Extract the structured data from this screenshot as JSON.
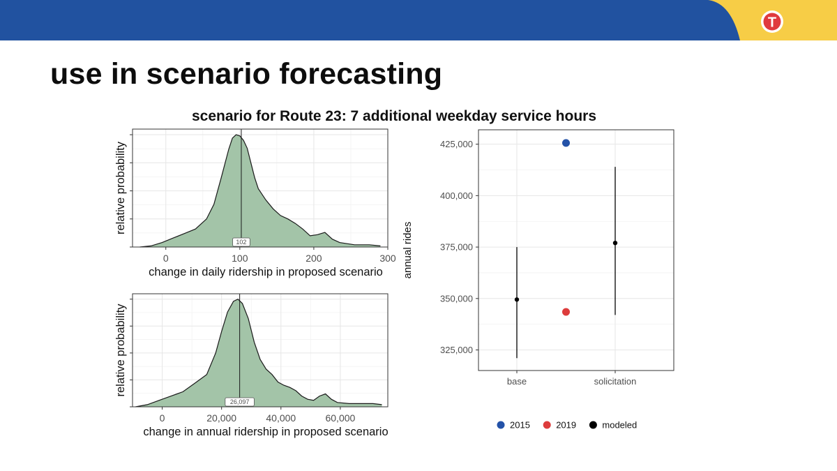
{
  "slide": {
    "title": "use in scenario forecasting",
    "logo_letter": "T",
    "colors": {
      "header_blue": "#2152a0",
      "header_yellow": "#f7cd46",
      "logo_red": "#e03a3e"
    }
  },
  "figure_title": "scenario for Route 23: 7 additional weekday service hours",
  "chart_data": [
    {
      "type": "area",
      "name": "daily-density",
      "title": "",
      "xlabel": "change in daily ridership in proposed scenario",
      "ylabel": "relative probability",
      "xlim": [
        -45,
        300
      ],
      "xticks": [
        0,
        100,
        200,
        300
      ],
      "xtick_labels": [
        "0",
        "100",
        "200",
        "300"
      ],
      "ylim": [
        0,
        1.05
      ],
      "grid": true,
      "fill_color": "#a3c4a8",
      "x": [
        -35,
        -20,
        -5,
        10,
        25,
        40,
        55,
        65,
        75,
        85,
        90,
        95,
        100,
        105,
        110,
        115,
        120,
        125,
        135,
        145,
        155,
        165,
        175,
        185,
        195,
        205,
        215,
        225,
        235,
        245,
        255,
        265,
        275,
        290
      ],
      "values": [
        0.0,
        0.01,
        0.04,
        0.08,
        0.12,
        0.16,
        0.25,
        0.38,
        0.62,
        0.87,
        0.97,
        1.0,
        0.99,
        0.95,
        0.88,
        0.75,
        0.62,
        0.52,
        0.42,
        0.34,
        0.28,
        0.25,
        0.21,
        0.16,
        0.1,
        0.11,
        0.13,
        0.07,
        0.04,
        0.03,
        0.02,
        0.02,
        0.02,
        0.01
      ],
      "median": 102,
      "median_label": "102"
    },
    {
      "type": "area",
      "name": "annual-density",
      "title": "",
      "xlabel": "change in annual ridership in proposed scenario",
      "ylabel": "relative probability",
      "xlim": [
        -10000,
        76000
      ],
      "xticks": [
        0,
        20000,
        40000,
        60000
      ],
      "xtick_labels": [
        "0",
        "20,000",
        "40,000",
        "60,000"
      ],
      "ylim": [
        0,
        1.05
      ],
      "grid": true,
      "fill_color": "#a3c4a8",
      "x": [
        -9000,
        -5000,
        -1000,
        3000,
        7000,
        11000,
        15000,
        18000,
        20000,
        22000,
        24000,
        25500,
        27000,
        29000,
        31000,
        33000,
        35000,
        37000,
        39000,
        41000,
        43000,
        45000,
        47000,
        49000,
        51000,
        53000,
        55000,
        57000,
        59000,
        63000,
        67000,
        71000,
        74000
      ],
      "values": [
        0.0,
        0.02,
        0.06,
        0.1,
        0.14,
        0.22,
        0.3,
        0.5,
        0.7,
        0.88,
        0.98,
        1.0,
        0.96,
        0.82,
        0.6,
        0.44,
        0.35,
        0.3,
        0.23,
        0.2,
        0.18,
        0.15,
        0.1,
        0.07,
        0.06,
        0.1,
        0.12,
        0.07,
        0.04,
        0.03,
        0.03,
        0.03,
        0.02
      ],
      "median": 26097,
      "median_label": "26,097"
    },
    {
      "type": "scatter",
      "name": "annual-rides",
      "title": "",
      "xlabel": "",
      "ylabel": "annual rides",
      "categories": [
        "base",
        "solicitation"
      ],
      "ylim": [
        315000,
        432000
      ],
      "yticks": [
        325000,
        350000,
        375000,
        400000,
        425000
      ],
      "ytick_labels": [
        "325,000",
        "350,000",
        "375,000",
        "400,000",
        "425,000"
      ],
      "grid": true,
      "legend_position": "bottom",
      "series": [
        {
          "name": "2015",
          "color": "#2452a8",
          "points": [
            {
              "x": 1.5,
              "y": 425600
            }
          ]
        },
        {
          "name": "2019",
          "color": "#dd3c3c",
          "points": [
            {
              "x": 1.5,
              "y": 343500
            }
          ]
        },
        {
          "name": "modeled",
          "color": "#000000",
          "points": [
            {
              "x": 1,
              "y": 349500,
              "low": 321000,
              "high": 375000
            },
            {
              "x": 2,
              "y": 377000,
              "low": 342000,
              "high": 414000
            }
          ]
        }
      ]
    }
  ]
}
